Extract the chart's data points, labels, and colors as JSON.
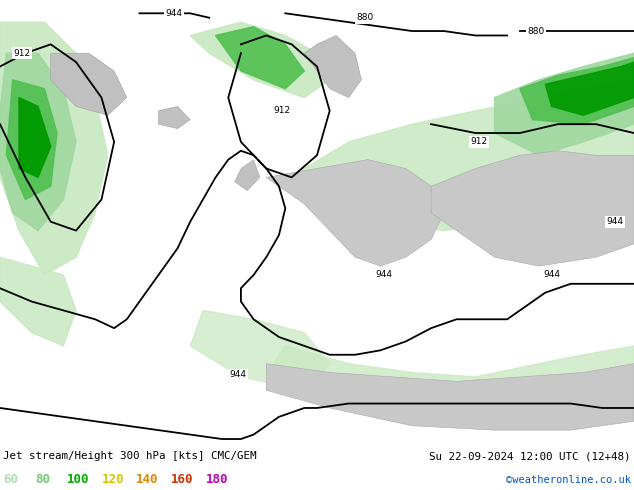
{
  "title_left": "Jet stream/Height 300 hPa [kts] CMC/GEM",
  "title_right": "Su 22-09-2024 12:00 UTC (12+48)",
  "copyright": "©weatheronline.co.uk",
  "legend_values": [
    "60",
    "80",
    "100",
    "120",
    "140",
    "160",
    "180"
  ],
  "legend_colors": [
    "#b0ddb0",
    "#78c878",
    "#00aa00",
    "#d4c800",
    "#e08800",
    "#d03000",
    "#c000c0"
  ],
  "bg_color": "#ffffff",
  "map_bg": "#f0f0f0",
  "land_color": "#c8c8c8",
  "bottom_bar_color": "#e8e8e8",
  "title_color": "#000000",
  "copyright_color": "#0055cc",
  "light_green": "#c8e8c0",
  "light_green2": "#a0d8a0",
  "mid_green": "#50c050",
  "dark_green": "#009900",
  "figsize": [
    6.34,
    4.9
  ],
  "dpi": 100
}
